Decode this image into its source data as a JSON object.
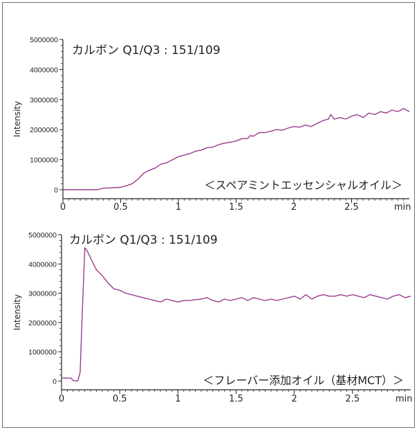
{
  "chart_data": [
    {
      "type": "line",
      "title": "カルボン Q1/Q3 : 151/109",
      "annotation": "＜スペアミントエッセンシャルオイル＞",
      "xlabel": "min",
      "ylabel": "Intensity",
      "xlim": [
        0,
        3.0
      ],
      "ylim": [
        -300000,
        5000000
      ],
      "xticks": [
        "0",
        "0.5",
        "1",
        "1.5",
        "2",
        "2.5"
      ],
      "yticks": [
        "0",
        "1000000",
        "2000000",
        "3000000",
        "4000000",
        "5000000"
      ],
      "grid": false,
      "line_color": "#9b3a8e",
      "series": [
        {
          "x": [
            0,
            0.1,
            0.2,
            0.3,
            0.35,
            0.4,
            0.5,
            0.55,
            0.6,
            0.65,
            0.7,
            0.75,
            0.8,
            0.85,
            0.9,
            0.95,
            1.0,
            1.05,
            1.1,
            1.15,
            1.2,
            1.25,
            1.3,
            1.35,
            1.4,
            1.45,
            1.5,
            1.55,
            1.6,
            1.62,
            1.65,
            1.7,
            1.75,
            1.8,
            1.85,
            1.9,
            1.95,
            2.0,
            2.05,
            2.1,
            2.15,
            2.2,
            2.25,
            2.3,
            2.32,
            2.35,
            2.4,
            2.45,
            2.5,
            2.55,
            2.6,
            2.65,
            2.7,
            2.75,
            2.8,
            2.85,
            2.9,
            2.95,
            3.0
          ],
          "y": [
            0,
            0,
            0,
            0,
            50000,
            60000,
            80000,
            130000,
            200000,
            350000,
            550000,
            650000,
            720000,
            850000,
            900000,
            1000000,
            1100000,
            1150000,
            1200000,
            1280000,
            1320000,
            1400000,
            1420000,
            1500000,
            1550000,
            1580000,
            1620000,
            1700000,
            1700000,
            1800000,
            1780000,
            1900000,
            1900000,
            1950000,
            2000000,
            1980000,
            2050000,
            2100000,
            2080000,
            2150000,
            2100000,
            2200000,
            2300000,
            2350000,
            2500000,
            2350000,
            2400000,
            2350000,
            2450000,
            2500000,
            2400000,
            2550000,
            2500000,
            2600000,
            2550000,
            2650000,
            2600000,
            2700000,
            2600000
          ]
        }
      ]
    },
    {
      "type": "line",
      "title": "カルボン Q1/Q3 : 151/109",
      "annotation": "＜フレーバー添加オイル（基材MCT）＞",
      "xlabel": "min",
      "ylabel": "Intensity",
      "xlim": [
        0,
        3.0
      ],
      "ylim": [
        -300000,
        5000000
      ],
      "xticks": [
        "0",
        "0.5",
        "1",
        "1.5",
        "2",
        "2.5"
      ],
      "yticks": [
        "0",
        "1000000",
        "2000000",
        "3000000",
        "4000000",
        "5000000"
      ],
      "grid": false,
      "line_color": "#9b3a8e",
      "series": [
        {
          "x": [
            0,
            0.05,
            0.08,
            0.1,
            0.12,
            0.14,
            0.16,
            0.18,
            0.2,
            0.22,
            0.25,
            0.28,
            0.3,
            0.35,
            0.4,
            0.45,
            0.5,
            0.55,
            0.6,
            0.65,
            0.7,
            0.75,
            0.8,
            0.85,
            0.9,
            0.95,
            1.0,
            1.05,
            1.1,
            1.15,
            1.2,
            1.25,
            1.3,
            1.35,
            1.4,
            1.45,
            1.5,
            1.55,
            1.6,
            1.65,
            1.7,
            1.75,
            1.8,
            1.85,
            1.9,
            1.95,
            2.0,
            2.05,
            2.1,
            2.15,
            2.2,
            2.25,
            2.3,
            2.35,
            2.4,
            2.45,
            2.5,
            2.55,
            2.6,
            2.65,
            2.7,
            2.75,
            2.8,
            2.85,
            2.9,
            2.95,
            3.0
          ],
          "y": [
            100000,
            100000,
            100000,
            20000,
            0,
            10000,
            300000,
            2500000,
            4550000,
            4450000,
            4200000,
            3950000,
            3800000,
            3600000,
            3350000,
            3150000,
            3100000,
            3000000,
            2950000,
            2900000,
            2850000,
            2800000,
            2750000,
            2700000,
            2800000,
            2750000,
            2700000,
            2750000,
            2750000,
            2780000,
            2800000,
            2850000,
            2750000,
            2700000,
            2800000,
            2750000,
            2800000,
            2850000,
            2750000,
            2850000,
            2800000,
            2750000,
            2800000,
            2750000,
            2800000,
            2850000,
            2900000,
            2800000,
            2950000,
            2800000,
            2900000,
            2950000,
            2900000,
            2900000,
            2950000,
            2900000,
            2950000,
            2900000,
            2850000,
            2950000,
            2900000,
            2850000,
            2800000,
            2900000,
            2950000,
            2850000,
            2900000
          ]
        }
      ]
    }
  ]
}
